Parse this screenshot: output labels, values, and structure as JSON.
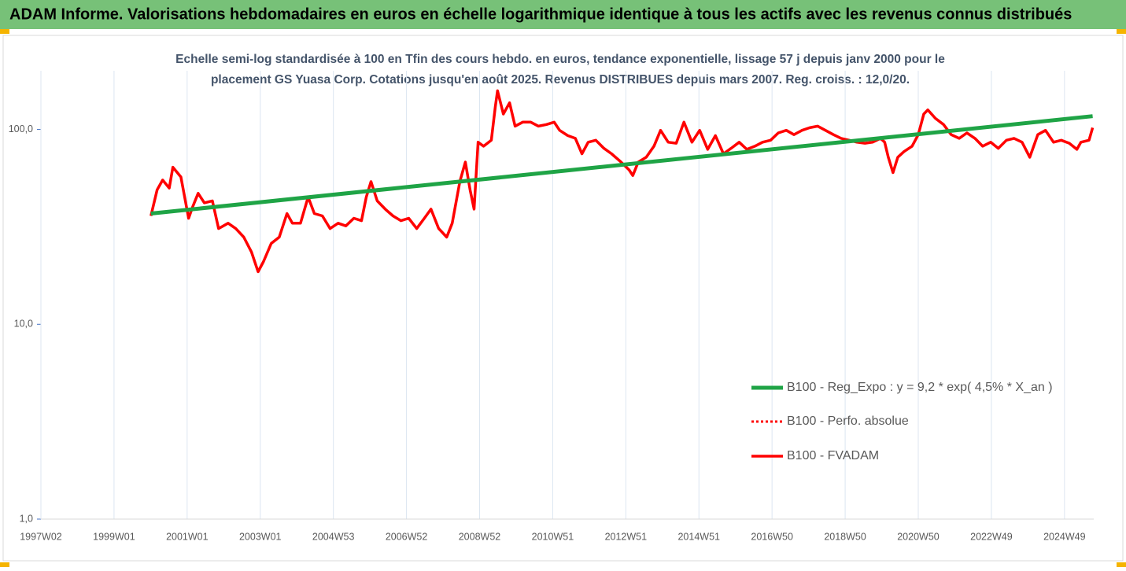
{
  "chart_data": {
    "type": "line",
    "title": "ADAM Informe. Valorisations hebdomadaires en euros en échelle logarithmique identique à tous les actifs avec les revenus connus distribués",
    "subtitle_lines": [
      "Echelle semi-log standardisée à 100 en Tfin des cours hebdo. en euros, tendance exponentielle, lissage 57 j depuis janv 2000 pour le",
      "placement GS Yuasa Corp. Cotations jusqu'en août 2025.  Revenus DISTRIBUES depuis mars 2007. Reg. croiss. : 12,0/20."
    ],
    "log_scale": true,
    "grid": true,
    "legend": "right",
    "xlim": [
      1997,
      2025.8
    ],
    "xticks": [
      {
        "value": 1997,
        "label": "1997W02"
      },
      {
        "value": 1999,
        "label": "1999W01"
      },
      {
        "value": 2001,
        "label": "2001W01"
      },
      {
        "value": 2003,
        "label": "2003W01"
      },
      {
        "value": 2005,
        "label": "2004W53"
      },
      {
        "value": 2007,
        "label": "2006W52"
      },
      {
        "value": 2009,
        "label": "2008W52"
      },
      {
        "value": 2011,
        "label": "2010W51"
      },
      {
        "value": 2013,
        "label": "2012W51"
      },
      {
        "value": 2015,
        "label": "2014W51"
      },
      {
        "value": 2017,
        "label": "2016W50"
      },
      {
        "value": 2019,
        "label": "2018W50"
      },
      {
        "value": 2021,
        "label": "2020W50"
      },
      {
        "value": 2023,
        "label": "2022W49"
      },
      {
        "value": 2025,
        "label": "2024W49"
      }
    ],
    "ylim": [
      1,
      200
    ],
    "yticks": [
      {
        "value": 1,
        "label": "1,0"
      },
      {
        "value": 10,
        "label": "10,0"
      },
      {
        "value": 100,
        "label": "100,0"
      }
    ],
    "series": [
      {
        "name": "B100 - Reg_Expo : y = 9,2 * exp( 4,5% *  X_an )",
        "color": "#1fa446",
        "width": 5,
        "x": [
          2000.01,
          2025.77
        ],
        "values": [
          37,
          117
        ]
      },
      {
        "name": "B100 - Perfo. absolue",
        "color": "#ff0000",
        "width": 3,
        "dash": "3 3"
      },
      {
        "name": "B100 - FVADAM",
        "color": "#ff0000",
        "width": 3.5,
        "x": [
          2000.01,
          2000.18,
          2000.33,
          2000.51,
          2000.61,
          2000.83,
          2001.04,
          2001.15,
          2001.3,
          2001.47,
          2001.69,
          2001.86,
          2002.12,
          2002.33,
          2002.55,
          2002.76,
          2002.94,
          2003.09,
          2003.3,
          2003.52,
          2003.73,
          2003.88,
          2004.1,
          2004.31,
          2004.48,
          2004.7,
          2004.91,
          2005.13,
          2005.34,
          2005.56,
          2005.77,
          2005.9,
          2006.03,
          2006.2,
          2006.42,
          2006.63,
          2006.85,
          2007.06,
          2007.28,
          2007.49,
          2007.67,
          2007.88,
          2008.1,
          2008.25,
          2008.46,
          2008.61,
          2008.74,
          2008.85,
          2008.96,
          2009.11,
          2009.32,
          2009.43,
          2009.49,
          2009.65,
          2009.82,
          2009.97,
          2010.18,
          2010.4,
          2010.61,
          2010.83,
          2011.04,
          2011.19,
          2011.41,
          2011.62,
          2011.8,
          2011.97,
          2012.18,
          2012.4,
          2012.61,
          2012.87,
          2013.09,
          2013.19,
          2013.34,
          2013.56,
          2013.77,
          2013.95,
          2014.16,
          2014.38,
          2014.59,
          2014.81,
          2015.02,
          2015.24,
          2015.45,
          2015.67,
          2015.88,
          2016.1,
          2016.31,
          2016.53,
          2016.74,
          2016.96,
          2017.17,
          2017.39,
          2017.6,
          2017.82,
          2018.03,
          2018.25,
          2018.46,
          2018.68,
          2018.89,
          2019.11,
          2019.32,
          2019.54,
          2019.75,
          2019.97,
          2020.08,
          2020.18,
          2020.31,
          2020.44,
          2020.61,
          2020.83,
          2021.0,
          2021.15,
          2021.26,
          2021.47,
          2021.69,
          2021.9,
          2022.12,
          2022.33,
          2022.55,
          2022.76,
          2022.98,
          2023.19,
          2023.41,
          2023.62,
          2023.84,
          2024.05,
          2024.27,
          2024.48,
          2024.7,
          2024.91,
          2025.13,
          2025.34,
          2025.45,
          2025.67,
          2025.77
        ],
        "values": [
          36,
          49,
          55,
          50,
          64,
          57,
          35,
          40,
          47,
          42,
          43,
          31,
          33,
          31,
          28,
          23.5,
          18.6,
          21,
          26,
          28,
          37,
          33,
          33,
          45,
          37,
          36,
          31,
          33,
          32,
          35,
          34,
          45,
          54,
          43,
          39,
          36,
          34,
          35,
          31,
          35,
          39,
          31,
          28,
          33,
          54,
          68,
          49,
          39,
          86,
          82,
          88,
          131,
          158,
          120,
          137,
          104,
          109,
          109,
          104,
          106,
          109,
          99,
          93,
          90,
          75,
          86,
          88,
          80,
          75,
          68,
          62,
          58,
          68,
          72,
          82,
          99,
          86,
          85,
          109,
          86,
          99,
          79,
          93,
          75,
          80,
          86,
          79,
          82,
          86,
          88,
          96,
          99,
          94,
          99,
          102,
          104,
          99,
          94,
          90,
          88,
          86,
          85,
          86,
          90,
          86,
          72,
          60,
          72,
          77,
          82,
          94,
          120,
          126,
          114,
          106,
          94,
          90,
          96,
          90,
          82,
          86,
          80,
          88,
          90,
          86,
          72,
          94,
          99,
          86,
          88,
          85,
          79,
          86,
          88,
          102
        ]
      }
    ]
  }
}
